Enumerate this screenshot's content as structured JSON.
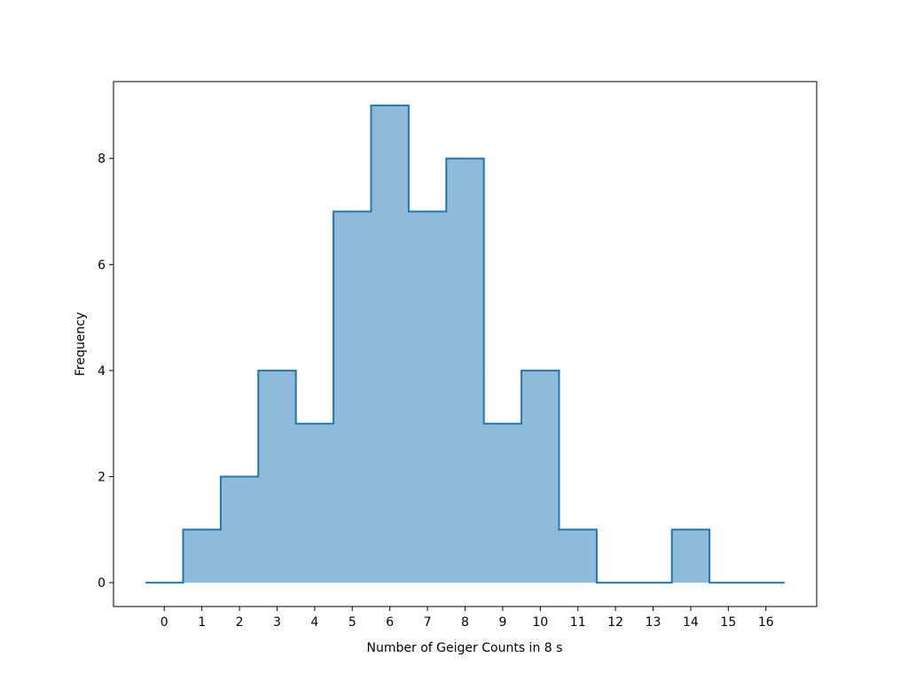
{
  "chart_data": {
    "type": "area",
    "style": "step-mid histogram with filled area",
    "title": "",
    "xlabel": "Number of Geiger Counts in 8 s",
    "ylabel": "Frequency",
    "x": [
      0,
      1,
      2,
      3,
      4,
      5,
      6,
      7,
      8,
      9,
      10,
      11,
      12,
      13,
      14,
      15,
      16
    ],
    "values": [
      0,
      1,
      2,
      4,
      3,
      7,
      9,
      7,
      8,
      3,
      4,
      1,
      0,
      0,
      1,
      0,
      0
    ],
    "xticks": [
      "0",
      "1",
      "2",
      "3",
      "4",
      "5",
      "6",
      "7",
      "8",
      "9",
      "10",
      "11",
      "12",
      "13",
      "14",
      "15",
      "16"
    ],
    "yticks": [
      "0",
      "2",
      "4",
      "6",
      "8"
    ],
    "xlim": [
      -1.35,
      17.35
    ],
    "ylim": [
      -0.45,
      9.45
    ],
    "grid": false,
    "colors": {
      "line": "#1f77b4",
      "fill": "#8fbbd9"
    }
  }
}
